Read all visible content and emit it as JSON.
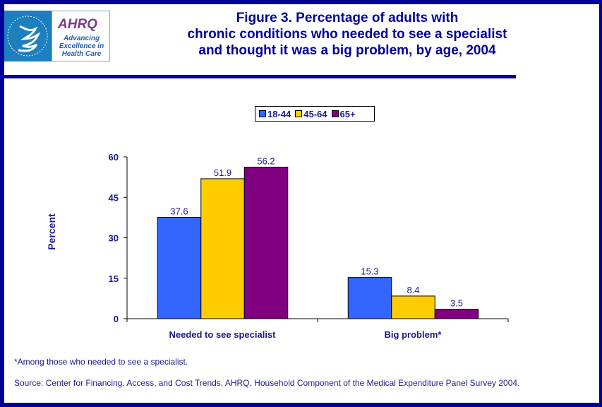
{
  "logo": {
    "hhs_label": "Department of Health & Human Services USA",
    "ahrq_mark": "AHRQ",
    "ahrq_tagline": "Advancing Excellence in Health Care"
  },
  "title_lines": [
    "Figure 3. Percentage of adults with",
    "chronic conditions who needed to see a specialist",
    "and thought it was a big problem, by age, 2004"
  ],
  "footnote": "*Among those who needed to see a specialist.",
  "source": "Source: Center for Financing, Access, and Cost Trends, AHRQ, Household Component of the Medical Expenditure Panel Survey 2004.",
  "colors": {
    "frame": "#000099",
    "text": "#1a1a8c",
    "series_18_44": "#3366ff",
    "series_45_64": "#ffcc00",
    "series_65_plus": "#800080"
  },
  "chart_data": {
    "type": "bar",
    "title": "Figure 3. Percentage of adults with chronic conditions who needed to see a specialist and thought it was a big problem, by age, 2004",
    "xlabel": "",
    "ylabel": "Percent",
    "ylim": [
      0,
      60
    ],
    "yticks": [
      0,
      15,
      30,
      45,
      60
    ],
    "grid": false,
    "legend_position": "top-center",
    "categories": [
      "Needed to see specialist",
      "Big problem*"
    ],
    "series": [
      {
        "name": "18-44",
        "color": "#3366ff",
        "values": [
          37.6,
          15.3
        ],
        "labels": [
          "37.6",
          "15.3"
        ]
      },
      {
        "name": "45-64",
        "color": "#ffcc00",
        "values": [
          51.9,
          8.4
        ],
        "labels": [
          "51.9",
          "8.4"
        ]
      },
      {
        "name": "65+",
        "color": "#800080",
        "values": [
          56.2,
          3.5
        ],
        "labels": [
          "56.2",
          "3.5"
        ]
      }
    ]
  }
}
